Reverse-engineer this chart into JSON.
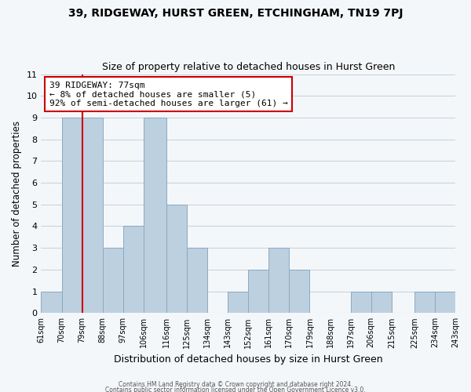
{
  "title": "39, RIDGEWAY, HURST GREEN, ETCHINGHAM, TN19 7PJ",
  "subtitle": "Size of property relative to detached houses in Hurst Green",
  "xlabel": "Distribution of detached houses by size in Hurst Green",
  "ylabel": "Number of detached properties",
  "bins_labels": [
    "61sqm",
    "70sqm",
    "79sqm",
    "88sqm",
    "97sqm",
    "106sqm",
    "116sqm",
    "125sqm",
    "134sqm",
    "143sqm",
    "152sqm",
    "161sqm",
    "170sqm",
    "179sqm",
    "188sqm",
    "197sqm",
    "206sqm",
    "215sqm",
    "225sqm",
    "234sqm",
    "243sqm"
  ],
  "bar_heights": [
    1,
    9,
    9,
    3,
    4,
    9,
    5,
    3,
    0,
    1,
    2,
    3,
    2,
    0,
    0,
    1,
    1,
    0,
    1,
    1
  ],
  "bar_color": "#bdd0e0",
  "bar_edge_color": "#8aaac0",
  "grid_color": "#c8d4de",
  "vline_x_bin_index": 1,
  "vline_color": "#cc0000",
  "annotation_line1": "39 RIDGEWAY: 77sqm",
  "annotation_line2": "← 8% of detached houses are smaller (5)",
  "annotation_line3": "92% of semi-detached houses are larger (61) →",
  "annotation_box_color": "#ffffff",
  "annotation_box_edge": "#cc0000",
  "ylim": [
    0,
    11
  ],
  "bin_edges": [
    61,
    70,
    79,
    88,
    97,
    106,
    116,
    125,
    134,
    143,
    152,
    161,
    170,
    179,
    188,
    197,
    206,
    215,
    225,
    234,
    243
  ],
  "footer1": "Contains HM Land Registry data © Crown copyright and database right 2024.",
  "footer2": "Contains public sector information licensed under the Open Government Licence v3.0.",
  "background_color": "#f4f7fa"
}
